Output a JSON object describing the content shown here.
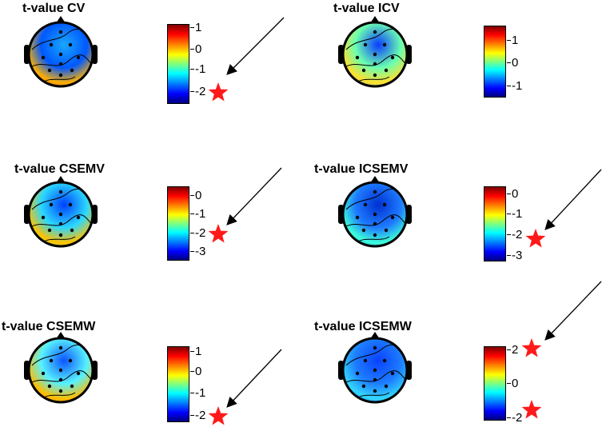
{
  "panels": [
    {
      "title": "t-value CV",
      "ticks": [
        "1",
        "0",
        "-1",
        "-2"
      ],
      "star_at": [
        "-2"
      ]
    },
    {
      "title": "t-value ICV",
      "ticks": [
        "1",
        "0",
        "-1"
      ],
      "star_at": []
    },
    {
      "title": "t-value CSEMV",
      "ticks": [
        "0",
        "-1",
        "-2",
        "-3"
      ],
      "star_at": [
        "-2"
      ]
    },
    {
      "title": "t-value ICSEMV",
      "ticks": [
        "0",
        "-1",
        "-2",
        "-3"
      ],
      "star_at": [
        "-2"
      ]
    },
    {
      "title": "t-value CSEMW",
      "ticks": [
        "1",
        "0",
        "-1",
        "-2"
      ],
      "star_at": [
        "-2"
      ]
    },
    {
      "title": "t-value ICSEMW",
      "ticks": [
        "2",
        "0",
        "-2"
      ],
      "star_at": [
        "2",
        "-2"
      ]
    }
  ],
  "colors": {
    "star": "#ff1a1a",
    "arrow": "#000000"
  },
  "icons": {
    "marker": "star-icon",
    "pointer": "arrow-icon"
  }
}
